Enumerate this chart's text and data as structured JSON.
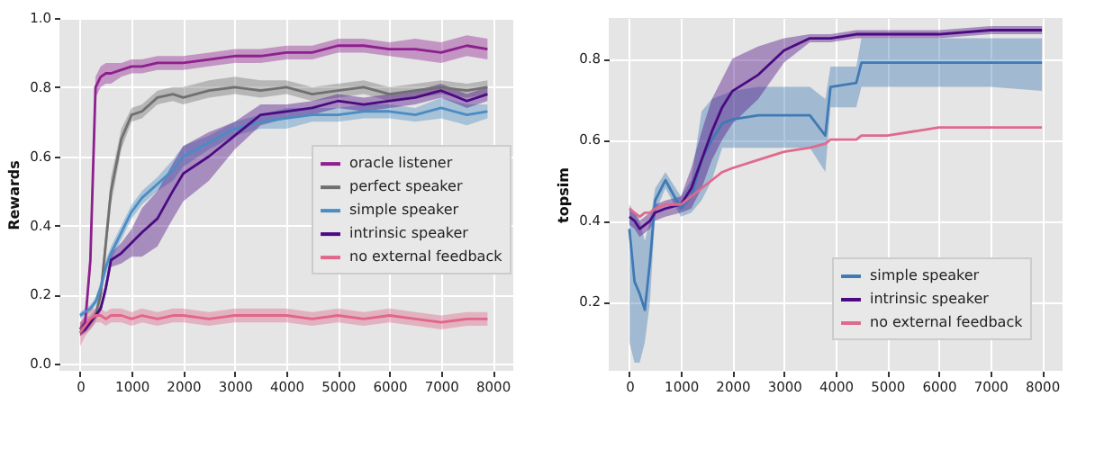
{
  "chart_data": [
    {
      "type": "line",
      "ylabel": "Rewards",
      "xlim": [
        -400,
        8400
      ],
      "ylim": [
        -0.02,
        1.0
      ],
      "xticks": [
        0,
        1000,
        2000,
        3000,
        4000,
        5000,
        6000,
        7000,
        8000
      ],
      "yticks": [
        {
          "value": 0,
          "label": "0.0"
        },
        0.2,
        0.4,
        0.6,
        0.8,
        {
          "value": 1,
          "label": "1.0"
        }
      ],
      "grid": true,
      "legend": "right",
      "x": [
        0,
        100,
        200,
        300,
        400,
        500,
        600,
        800,
        1000,
        1200,
        1500,
        1800,
        2000,
        2500,
        3000,
        3500,
        4000,
        4500,
        5000,
        5500,
        6000,
        6500,
        7000,
        7500,
        7900
      ],
      "series": [
        {
          "name": "oracle listener",
          "color": "#8e1f8e",
          "values": [
            0.1,
            0.12,
            0.3,
            0.8,
            0.83,
            0.84,
            0.84,
            0.85,
            0.86,
            0.86,
            0.87,
            0.87,
            0.87,
            0.88,
            0.89,
            0.89,
            0.9,
            0.9,
            0.92,
            0.92,
            0.91,
            0.91,
            0.9,
            0.92,
            0.91
          ],
          "lower": [
            0.08,
            0.1,
            0.26,
            0.77,
            0.8,
            0.81,
            0.81,
            0.83,
            0.84,
            0.84,
            0.85,
            0.85,
            0.85,
            0.86,
            0.87,
            0.87,
            0.88,
            0.88,
            0.9,
            0.9,
            0.89,
            0.88,
            0.87,
            0.89,
            0.88
          ],
          "upper": [
            0.12,
            0.14,
            0.34,
            0.83,
            0.86,
            0.87,
            0.87,
            0.87,
            0.88,
            0.88,
            0.89,
            0.89,
            0.89,
            0.9,
            0.91,
            0.91,
            0.92,
            0.92,
            0.94,
            0.94,
            0.93,
            0.94,
            0.93,
            0.95,
            0.94
          ]
        },
        {
          "name": "perfect speaker",
          "color": "#707070",
          "values": [
            0.1,
            0.11,
            0.12,
            0.14,
            0.2,
            0.35,
            0.5,
            0.65,
            0.72,
            0.73,
            0.77,
            0.78,
            0.77,
            0.79,
            0.8,
            0.79,
            0.8,
            0.78,
            0.79,
            0.8,
            0.78,
            0.79,
            0.8,
            0.79,
            0.8
          ],
          "lower": [
            0.08,
            0.09,
            0.1,
            0.12,
            0.17,
            0.31,
            0.46,
            0.62,
            0.7,
            0.71,
            0.75,
            0.76,
            0.75,
            0.77,
            0.78,
            0.77,
            0.78,
            0.76,
            0.77,
            0.78,
            0.76,
            0.77,
            0.78,
            0.77,
            0.78
          ],
          "upper": [
            0.12,
            0.13,
            0.14,
            0.16,
            0.23,
            0.39,
            0.54,
            0.68,
            0.74,
            0.75,
            0.79,
            0.8,
            0.8,
            0.82,
            0.83,
            0.82,
            0.82,
            0.8,
            0.81,
            0.82,
            0.8,
            0.81,
            0.82,
            0.81,
            0.82
          ]
        },
        {
          "name": "simple speaker",
          "color": "#4a8cc4",
          "values": [
            0.14,
            0.15,
            0.16,
            0.18,
            0.22,
            0.28,
            0.32,
            0.38,
            0.44,
            0.48,
            0.52,
            0.56,
            0.6,
            0.64,
            0.68,
            0.7,
            0.71,
            0.72,
            0.72,
            0.73,
            0.73,
            0.72,
            0.74,
            0.72,
            0.73
          ],
          "lower": [
            0.13,
            0.14,
            0.15,
            0.17,
            0.2,
            0.26,
            0.3,
            0.36,
            0.42,
            0.46,
            0.5,
            0.53,
            0.57,
            0.62,
            0.66,
            0.68,
            0.68,
            0.7,
            0.7,
            0.71,
            0.71,
            0.7,
            0.71,
            0.69,
            0.71
          ],
          "upper": [
            0.15,
            0.16,
            0.17,
            0.19,
            0.24,
            0.3,
            0.34,
            0.4,
            0.46,
            0.5,
            0.54,
            0.59,
            0.63,
            0.66,
            0.7,
            0.72,
            0.74,
            0.74,
            0.74,
            0.75,
            0.75,
            0.74,
            0.77,
            0.75,
            0.75
          ]
        },
        {
          "name": "intrinsic speaker",
          "color": "#4b0a82",
          "values": [
            0.09,
            0.1,
            0.12,
            0.14,
            0.16,
            0.22,
            0.3,
            0.32,
            0.35,
            0.38,
            0.42,
            0.5,
            0.55,
            0.6,
            0.66,
            0.72,
            0.73,
            0.74,
            0.76,
            0.75,
            0.76,
            0.77,
            0.79,
            0.76,
            0.78
          ],
          "lower": [
            0.08,
            0.09,
            0.11,
            0.13,
            0.15,
            0.2,
            0.28,
            0.29,
            0.31,
            0.31,
            0.34,
            0.42,
            0.47,
            0.53,
            0.62,
            0.69,
            0.71,
            0.72,
            0.74,
            0.73,
            0.74,
            0.75,
            0.77,
            0.74,
            0.76
          ],
          "upper": [
            0.1,
            0.11,
            0.13,
            0.15,
            0.17,
            0.24,
            0.32,
            0.35,
            0.39,
            0.45,
            0.5,
            0.58,
            0.63,
            0.67,
            0.7,
            0.75,
            0.75,
            0.76,
            0.78,
            0.77,
            0.78,
            0.79,
            0.81,
            0.78,
            0.8
          ]
        },
        {
          "name": "no external feedback",
          "color": "#e0668a",
          "values": [
            0.09,
            0.11,
            0.13,
            0.14,
            0.14,
            0.13,
            0.14,
            0.14,
            0.13,
            0.14,
            0.13,
            0.14,
            0.14,
            0.13,
            0.14,
            0.14,
            0.14,
            0.13,
            0.14,
            0.13,
            0.14,
            0.13,
            0.12,
            0.13,
            0.13
          ],
          "lower": [
            0.05,
            0.08,
            0.1,
            0.12,
            0.12,
            0.11,
            0.12,
            0.12,
            0.11,
            0.12,
            0.11,
            0.12,
            0.12,
            0.11,
            0.12,
            0.12,
            0.12,
            0.11,
            0.12,
            0.11,
            0.12,
            0.11,
            0.1,
            0.11,
            0.11
          ],
          "upper": [
            0.12,
            0.14,
            0.16,
            0.16,
            0.16,
            0.15,
            0.16,
            0.16,
            0.15,
            0.16,
            0.15,
            0.16,
            0.16,
            0.15,
            0.16,
            0.16,
            0.16,
            0.15,
            0.16,
            0.15,
            0.16,
            0.15,
            0.14,
            0.15,
            0.15
          ]
        }
      ]
    },
    {
      "type": "line",
      "ylabel": "topsim",
      "xlim": [
        -400,
        8400
      ],
      "ylim": [
        0.03,
        0.9
      ],
      "xticks": [
        0,
        1000,
        2000,
        3000,
        4000,
        5000,
        6000,
        7000,
        8000
      ],
      "yticks": [
        0.2,
        0.4,
        0.6,
        0.8
      ],
      "grid": true,
      "legend": "bottom right",
      "x": [
        0,
        100,
        200,
        300,
        400,
        500,
        700,
        1000,
        1200,
        1400,
        1600,
        1800,
        2000,
        2500,
        3000,
        3500,
        3800,
        3900,
        4400,
        4500,
        5000,
        6000,
        7000,
        8000
      ],
      "series": [
        {
          "name": "simple speaker",
          "color": "#3f7ab5",
          "values": [
            0.38,
            0.25,
            0.22,
            0.18,
            0.3,
            0.45,
            0.5,
            0.43,
            0.46,
            0.55,
            0.6,
            0.64,
            0.65,
            0.66,
            0.66,
            0.66,
            0.61,
            0.73,
            0.74,
            0.79,
            0.79,
            0.79,
            0.79,
            0.79
          ],
          "lower": [
            0.1,
            0.05,
            0.05,
            0.1,
            0.2,
            0.42,
            0.48,
            0.41,
            0.42,
            0.45,
            0.5,
            0.58,
            0.58,
            0.58,
            0.58,
            0.58,
            0.52,
            0.68,
            0.68,
            0.73,
            0.73,
            0.73,
            0.73,
            0.72
          ],
          "upper": [
            0.44,
            0.42,
            0.4,
            0.35,
            0.4,
            0.48,
            0.52,
            0.46,
            0.5,
            0.67,
            0.7,
            0.71,
            0.72,
            0.73,
            0.73,
            0.73,
            0.7,
            0.78,
            0.78,
            0.85,
            0.85,
            0.85,
            0.85,
            0.85
          ]
        },
        {
          "name": "intrinsic speaker",
          "color": "#4b0a82",
          "values": [
            0.41,
            0.4,
            0.38,
            0.39,
            0.4,
            0.42,
            0.43,
            0.44,
            0.48,
            0.55,
            0.62,
            0.68,
            0.72,
            0.76,
            0.82,
            0.85,
            0.85,
            0.85,
            0.86,
            0.86,
            0.86,
            0.86,
            0.87,
            0.87
          ],
          "lower": [
            0.39,
            0.38,
            0.36,
            0.37,
            0.38,
            0.4,
            0.41,
            0.42,
            0.43,
            0.48,
            0.55,
            0.6,
            0.64,
            0.7,
            0.79,
            0.84,
            0.84,
            0.84,
            0.85,
            0.85,
            0.85,
            0.85,
            0.86,
            0.86
          ],
          "upper": [
            0.43,
            0.42,
            0.4,
            0.41,
            0.42,
            0.44,
            0.45,
            0.46,
            0.53,
            0.62,
            0.7,
            0.75,
            0.8,
            0.83,
            0.85,
            0.86,
            0.86,
            0.86,
            0.87,
            0.87,
            0.87,
            0.87,
            0.88,
            0.88
          ]
        },
        {
          "name": "no external feedback",
          "color": "#e06a8d",
          "values": [
            0.43,
            0.42,
            0.41,
            0.42,
            0.42,
            0.43,
            0.44,
            0.44,
            0.46,
            0.48,
            0.5,
            0.52,
            0.53,
            0.55,
            0.57,
            0.58,
            0.59,
            0.6,
            0.6,
            0.61,
            0.61,
            0.63,
            0.63,
            0.63
          ]
        }
      ]
    }
  ]
}
